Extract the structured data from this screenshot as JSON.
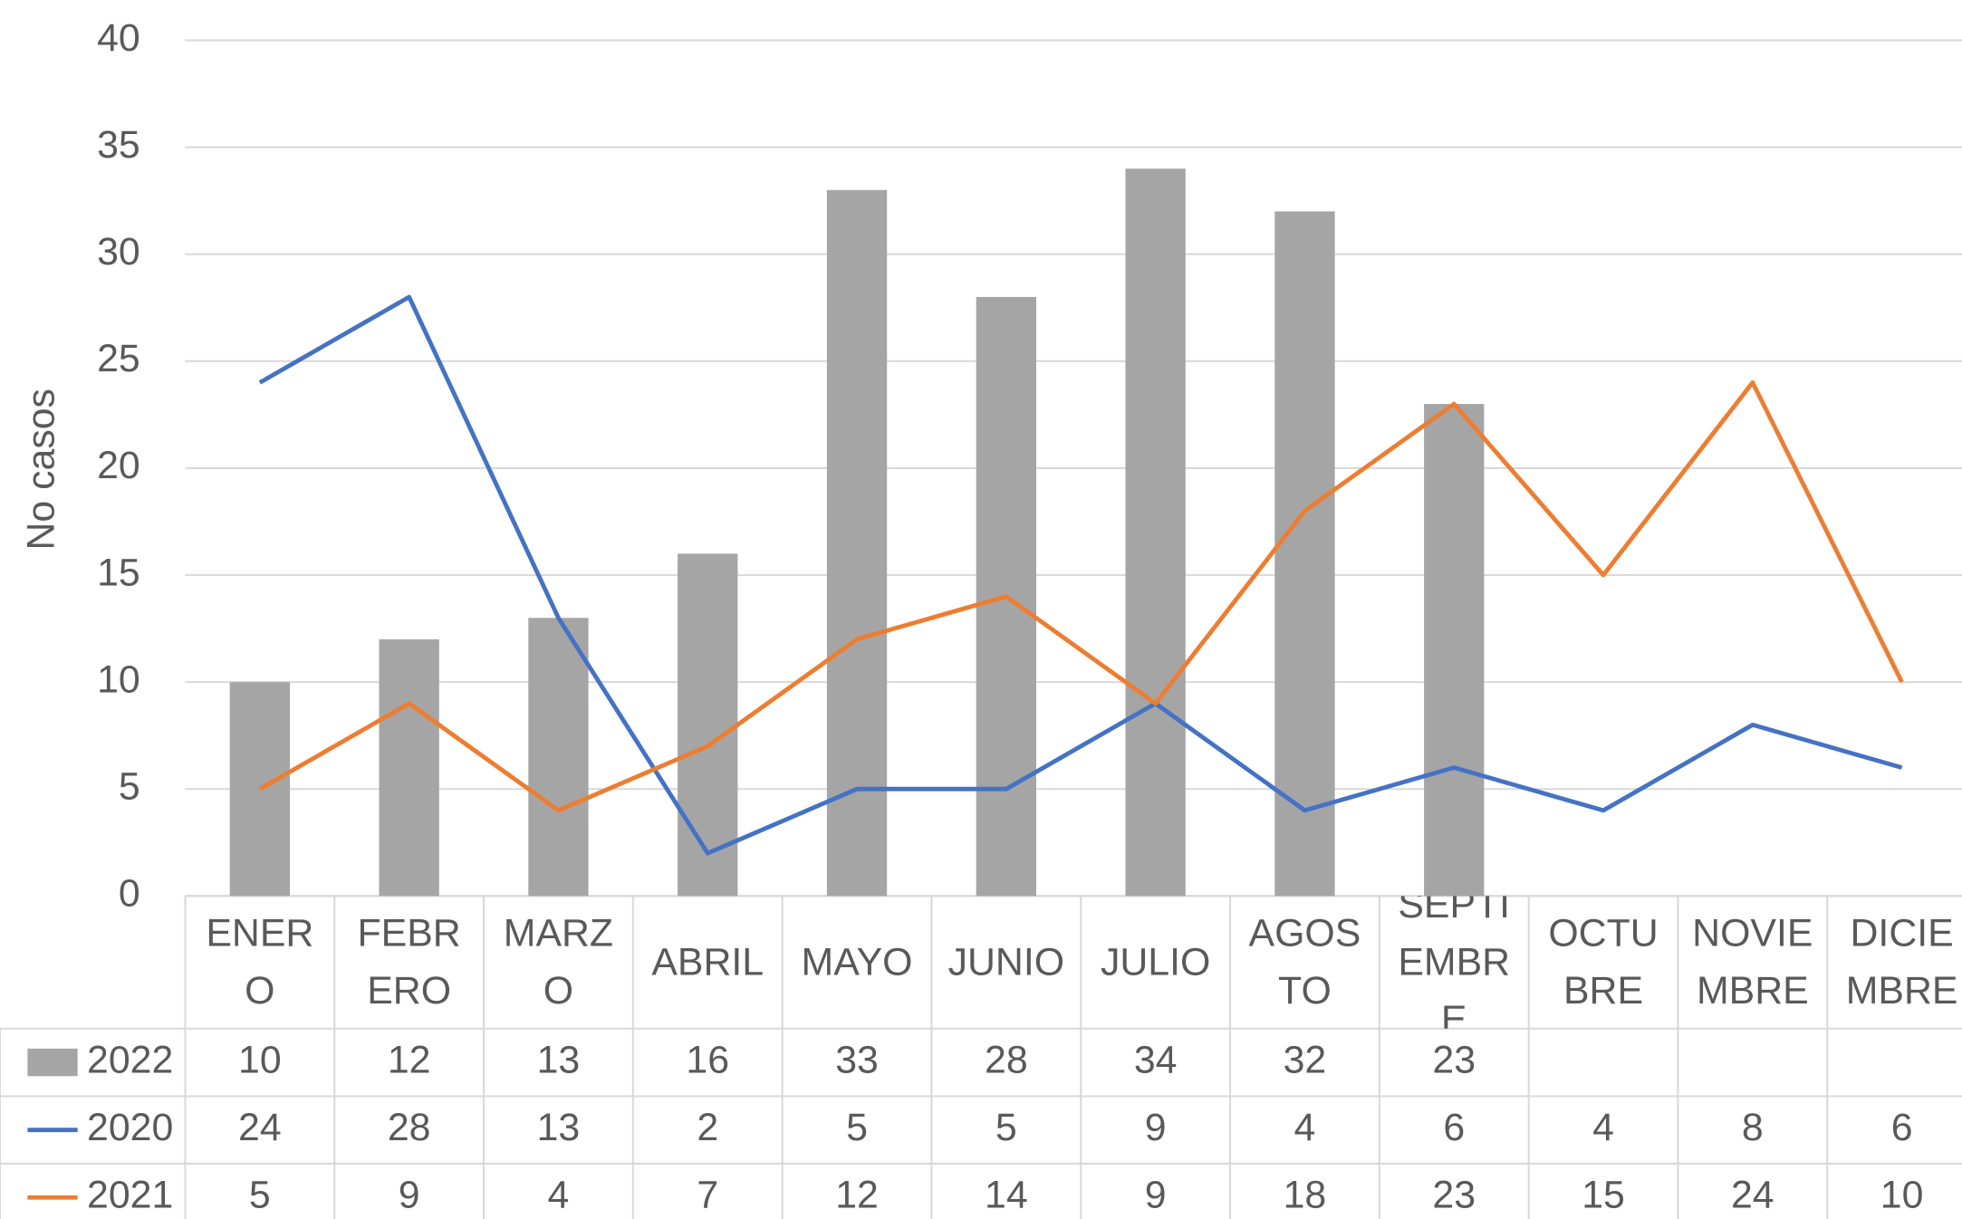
{
  "chart_data": {
    "type": "combo",
    "y_label": "No casos",
    "categories": [
      "ENERO",
      "FEBRERO",
      "MARZO",
      "ABRIL",
      "MAYO",
      "JUNIO",
      "JULIO",
      "AGOSTO",
      "SEPTIEMBRE",
      "OCTUBRE",
      "NOVIEMBRE",
      "DICIEMBRE"
    ],
    "series": [
      {
        "name": "2022",
        "type": "bar",
        "color": "#a5a5a5",
        "values": [
          10,
          12,
          13,
          16,
          33,
          28,
          34,
          32,
          23,
          null,
          null,
          null
        ]
      },
      {
        "name": "2020",
        "type": "line",
        "color": "#4472c4",
        "values": [
          24,
          28,
          13,
          2,
          5,
          5,
          9,
          4,
          6,
          4,
          8,
          6
        ]
      },
      {
        "name": "2021",
        "type": "line",
        "color": "#ed7d31",
        "values": [
          5,
          9,
          4,
          7,
          12,
          14,
          9,
          18,
          23,
          15,
          24,
          10
        ]
      }
    ],
    "ylim": [
      0,
      40
    ],
    "yticks": [
      0,
      5,
      10,
      15,
      20,
      25,
      30,
      35,
      40
    ],
    "grid": true,
    "data_table": true
  }
}
